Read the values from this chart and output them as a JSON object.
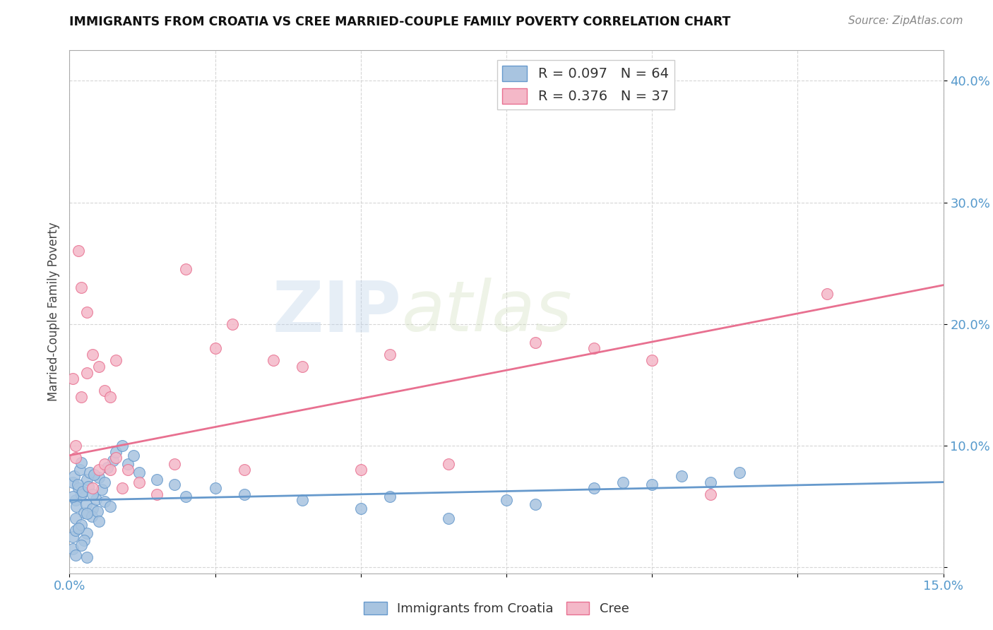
{
  "title": "IMMIGRANTS FROM CROATIA VS CREE MARRIED-COUPLE FAMILY POVERTY CORRELATION CHART",
  "source": "Source: ZipAtlas.com",
  "ylabel": "Married-Couple Family Poverty",
  "xlim": [
    0.0,
    0.15
  ],
  "ylim": [
    -0.005,
    0.425
  ],
  "xticks": [
    0.0,
    0.025,
    0.05,
    0.075,
    0.1,
    0.125,
    0.15
  ],
  "xticklabels": [
    "0.0%",
    "",
    "",
    "",
    "",
    "",
    "15.0%"
  ],
  "yticks": [
    0.0,
    0.1,
    0.2,
    0.3,
    0.4
  ],
  "yticklabels": [
    "",
    "10.0%",
    "20.0%",
    "30.0%",
    "40.0%"
  ],
  "legend_r1": "R = 0.097",
  "legend_n1": "N = 64",
  "legend_r2": "R = 0.376",
  "legend_n2": "N = 37",
  "blue_color": "#a8c4e0",
  "pink_color": "#f4b8c8",
  "line_blue": "#6699cc",
  "line_pink": "#e87090",
  "watermark_zip": "ZIP",
  "watermark_atlas": "atlas",
  "blue_scatter_x": [
    0.0005,
    0.001,
    0.0015,
    0.002,
    0.0008,
    0.0012,
    0.0018,
    0.0025,
    0.003,
    0.0006,
    0.0014,
    0.0022,
    0.0028,
    0.0035,
    0.004,
    0.0045,
    0.005,
    0.0032,
    0.0038,
    0.0042,
    0.0048,
    0.0055,
    0.006,
    0.0065,
    0.001,
    0.002,
    0.003,
    0.004,
    0.005,
    0.006,
    0.007,
    0.0075,
    0.008,
    0.009,
    0.01,
    0.011,
    0.012,
    0.0005,
    0.001,
    0.002,
    0.003,
    0.0015,
    0.0025,
    0.015,
    0.018,
    0.02,
    0.025,
    0.03,
    0.04,
    0.05,
    0.055,
    0.065,
    0.075,
    0.08,
    0.09,
    0.095,
    0.1,
    0.105,
    0.11,
    0.115,
    0.0005,
    0.001,
    0.002,
    0.003
  ],
  "blue_scatter_y": [
    0.07,
    0.055,
    0.065,
    0.06,
    0.075,
    0.05,
    0.08,
    0.045,
    0.072,
    0.058,
    0.068,
    0.062,
    0.052,
    0.078,
    0.048,
    0.056,
    0.074,
    0.066,
    0.042,
    0.076,
    0.046,
    0.064,
    0.054,
    0.082,
    0.04,
    0.086,
    0.044,
    0.06,
    0.038,
    0.07,
    0.05,
    0.088,
    0.095,
    0.1,
    0.085,
    0.092,
    0.078,
    0.025,
    0.03,
    0.035,
    0.028,
    0.032,
    0.022,
    0.072,
    0.068,
    0.058,
    0.065,
    0.06,
    0.055,
    0.048,
    0.058,
    0.04,
    0.055,
    0.052,
    0.065,
    0.07,
    0.068,
    0.075,
    0.07,
    0.078,
    0.015,
    0.01,
    0.018,
    0.008
  ],
  "pink_scatter_x": [
    0.0005,
    0.001,
    0.0015,
    0.002,
    0.003,
    0.004,
    0.005,
    0.006,
    0.007,
    0.008,
    0.001,
    0.002,
    0.003,
    0.004,
    0.005,
    0.006,
    0.007,
    0.008,
    0.009,
    0.01,
    0.012,
    0.015,
    0.018,
    0.02,
    0.025,
    0.028,
    0.03,
    0.035,
    0.04,
    0.05,
    0.055,
    0.065,
    0.08,
    0.09,
    0.1,
    0.11,
    0.13
  ],
  "pink_scatter_y": [
    0.155,
    0.1,
    0.26,
    0.23,
    0.21,
    0.175,
    0.165,
    0.145,
    0.14,
    0.17,
    0.09,
    0.14,
    0.16,
    0.065,
    0.08,
    0.085,
    0.08,
    0.09,
    0.065,
    0.08,
    0.07,
    0.06,
    0.085,
    0.245,
    0.18,
    0.2,
    0.08,
    0.17,
    0.165,
    0.08,
    0.175,
    0.085,
    0.185,
    0.18,
    0.17,
    0.06,
    0.225
  ],
  "blue_line_x": [
    0.0,
    0.15
  ],
  "blue_line_y": [
    0.055,
    0.07
  ],
  "pink_line_x": [
    0.0,
    0.15
  ],
  "pink_line_y": [
    0.092,
    0.232
  ]
}
